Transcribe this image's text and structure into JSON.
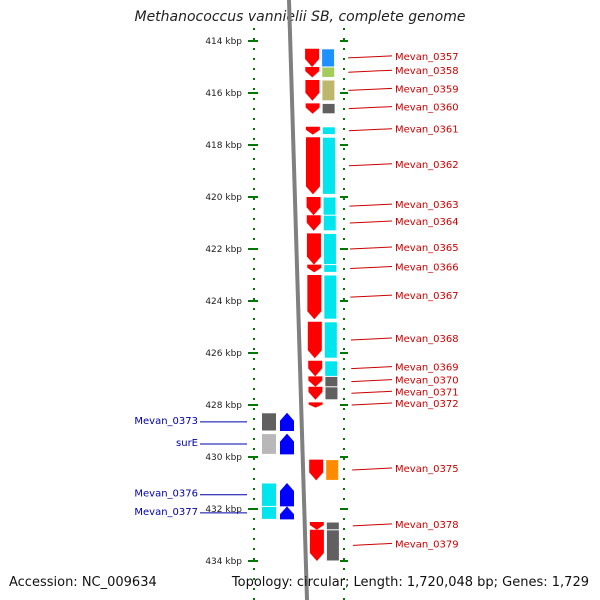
{
  "title": "Methanococcus vannielii SB, complete genome",
  "accession_label": "Accession: NC_009634",
  "topology_label": "Topology: circular; Length: 1,720,048 bp; Genes: 1,729",
  "colors": {
    "forward_gene": "#ff0000",
    "reverse_gene": "#0000ff",
    "right_label": "#cc0000",
    "left_label": "#0000aa",
    "tick": "#007700",
    "spine": "#808080"
  },
  "scale": {
    "ticks": [
      "414 kbp",
      "416 kbp",
      "418 kbp",
      "420 kbp",
      "422 kbp",
      "424 kbp",
      "426 kbp",
      "428 kbp",
      "430 kbp",
      "432 kbp",
      "434 kbp"
    ]
  },
  "right_genes": [
    {
      "label": "Mevan_0357",
      "start": 414.3,
      "end": 415.0,
      "cog_color": "#1e90ff"
    },
    {
      "label": "Mevan_0358",
      "start": 415.0,
      "end": 415.4,
      "cog_color": "#a2cd5a"
    },
    {
      "label": "Mevan_0359",
      "start": 415.5,
      "end": 416.3,
      "cog_color": "#bdb76b"
    },
    {
      "label": "Mevan_0360",
      "start": 416.4,
      "end": 416.8,
      "cog_color": "#606060"
    },
    {
      "label": "Mevan_0361",
      "start": 417.3,
      "end": 417.6,
      "cog_color": "#00e5ee"
    },
    {
      "label": "Mevan_0362",
      "start": 417.7,
      "end": 419.9,
      "cog_color": "#00e5ee"
    },
    {
      "label": "Mevan_0363",
      "start": 420.0,
      "end": 420.7,
      "cog_color": "#00e5ee"
    },
    {
      "label": "Mevan_0364",
      "start": 420.7,
      "end": 421.3,
      "cog_color": "#00e5ee"
    },
    {
      "label": "Mevan_0365",
      "start": 421.4,
      "end": 422.6,
      "cog_color": "#00e5ee"
    },
    {
      "label": "Mevan_0366",
      "start": 422.6,
      "end": 422.9,
      "cog_color": "#00e5ee"
    },
    {
      "label": "Mevan_0367",
      "start": 423.0,
      "end": 424.7,
      "cog_color": "#00e5ee"
    },
    {
      "label": "Mevan_0368",
      "start": 424.8,
      "end": 426.2,
      "cog_color": "#00e5ee"
    },
    {
      "label": "Mevan_0369",
      "start": 426.3,
      "end": 426.9,
      "cog_color": "#00e5ee"
    },
    {
      "label": "Mevan_0370",
      "start": 426.9,
      "end": 427.3,
      "cog_color": "#606060"
    },
    {
      "label": "Mevan_0371",
      "start": 427.3,
      "end": 427.8,
      "cog_color": "#606060"
    },
    {
      "label": "Mevan_0372",
      "start": 427.9,
      "end": 428.1,
      "cog_color": ""
    },
    {
      "label": "Mevan_0375",
      "start": 430.1,
      "end": 430.9,
      "cog_color": "#ff8c00"
    },
    {
      "label": "Mevan_0378",
      "start": 432.5,
      "end": 432.8,
      "cog_color": "#606060"
    },
    {
      "label": "Mevan_0379",
      "start": 432.8,
      "end": 434.0,
      "cog_color": "#606060"
    }
  ],
  "left_genes": [
    {
      "label": "Mevan_0373",
      "start": 428.3,
      "end": 429.0,
      "cog_color": "#606060"
    },
    {
      "label": "surE",
      "start": 429.1,
      "end": 429.9,
      "cog_color": "#b8b8b8"
    },
    {
      "label": "Mevan_0376",
      "start": 431.0,
      "end": 431.9,
      "cog_color": "#00e5ee"
    },
    {
      "label": "Mevan_0377",
      "start": 431.9,
      "end": 432.4,
      "cog_color": "#00e5ee"
    }
  ]
}
